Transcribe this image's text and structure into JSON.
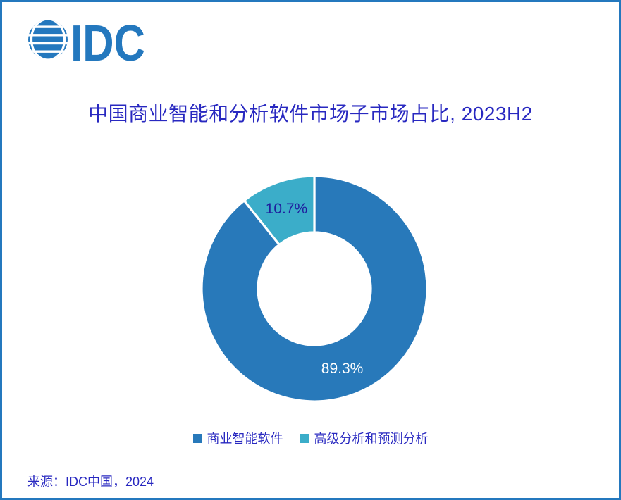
{
  "page": {
    "border_color": "#2478BE",
    "background_color": "#FFFFFF"
  },
  "logo": {
    "text": "IDC",
    "color": "#2478BE",
    "icon": "idc-globe-stripes-icon"
  },
  "title": {
    "text": "中国商业智能和分析软件市场子市场占比, 2023H2",
    "color": "#2828C0"
  },
  "chart_data": {
    "type": "pie",
    "subtype": "donut",
    "title": "中国商业智能和分析软件市场子市场占比, 2023H2",
    "series": [
      {
        "name": "商业智能软件",
        "value": 89.3,
        "data_label": "89.3%",
        "color": "#2879BA",
        "label_color": "#FFFFFF"
      },
      {
        "name": "高级分析和预测分析",
        "value": 10.7,
        "data_label": "10.7%",
        "color": "#3BADC9",
        "label_color": "#1F1F9E"
      }
    ],
    "start_angle_deg": 0,
    "direction": "clockwise",
    "inner_radius_ratio": 0.5,
    "slice_border_color": "#FFFFFF",
    "slice_border_width": 3.2,
    "legend_position": "bottom",
    "legend_text_color": "#2828C0"
  },
  "source": {
    "text": "来源：IDC中国，2024"
  }
}
